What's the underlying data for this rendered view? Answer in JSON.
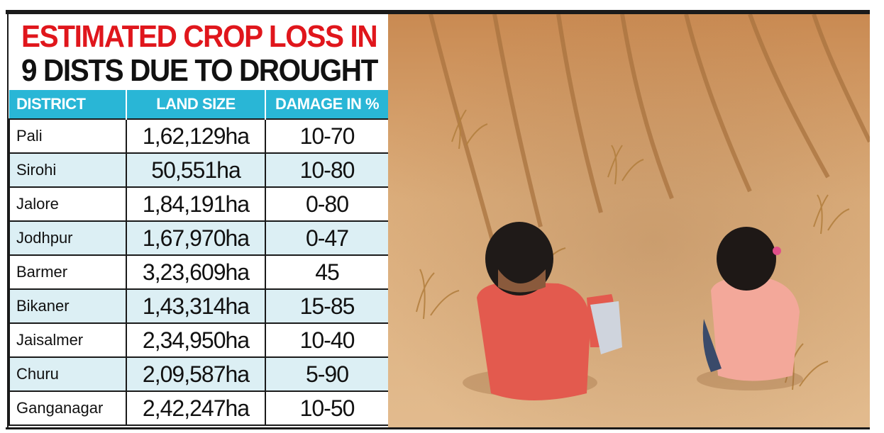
{
  "headline": {
    "line1": "ESTIMATED CROP LOSS IN",
    "line2": "9 DISTS DUE TO DROUGHT"
  },
  "table": {
    "headers": [
      "DISTRICT",
      "LAND SIZE",
      "DAMAGE IN %"
    ],
    "rows": [
      {
        "district": "Pali",
        "land": "1,62,129ha",
        "damage": "10-70"
      },
      {
        "district": "Sirohi",
        "land": "50,551ha",
        "damage": "10-80"
      },
      {
        "district": "Jalore",
        "land": "1,84,191ha",
        "damage": "0-80"
      },
      {
        "district": "Jodhpur",
        "land": "1,67,970ha",
        "damage": "0-47"
      },
      {
        "district": "Barmer",
        "land": "3,23,609ha",
        "damage": "45"
      },
      {
        "district": "Bikaner",
        "land": "1,43,314ha",
        "damage": "15-85"
      },
      {
        "district": "Jaisalmer",
        "land": "2,34,950ha",
        "damage": "10-40"
      },
      {
        "district": "Churu",
        "land": "2,09,587ha",
        "damage": "5-90"
      },
      {
        "district": "Ganganagar",
        "land": "2,42,247ha",
        "damage": "10-50"
      }
    ]
  },
  "colors": {
    "headline_red": "#e0161c",
    "header_cyan": "#29b6d6",
    "row_tint": "#dceff4",
    "soil": "#d9a46e"
  },
  "photo": {
    "icon": "drought-field-children-photo"
  }
}
